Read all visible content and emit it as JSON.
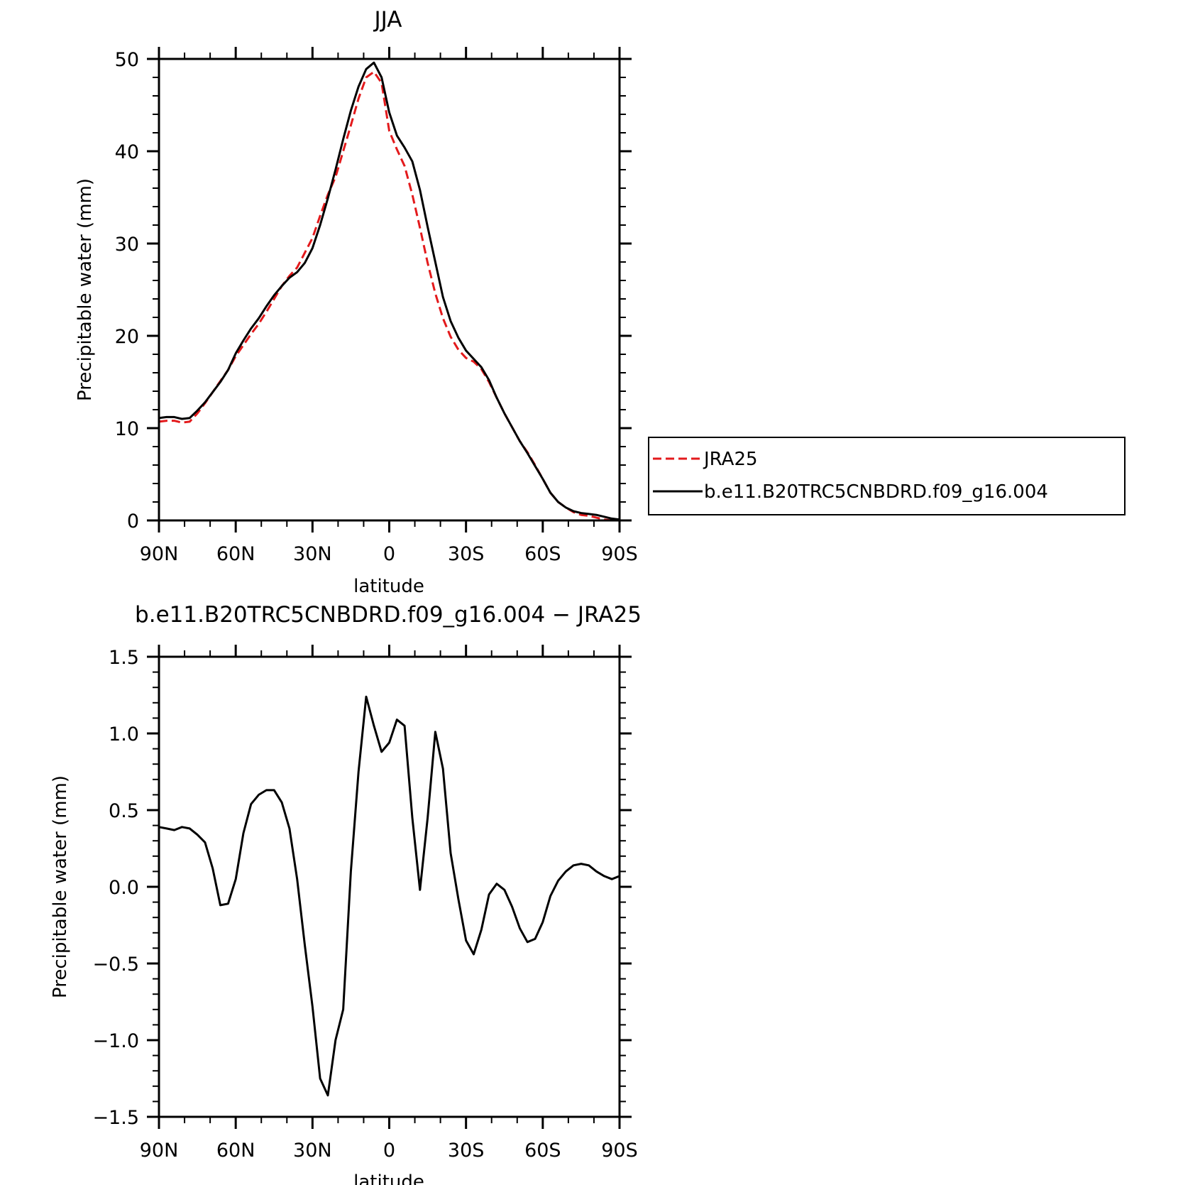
{
  "chart_data": [
    {
      "type": "line",
      "title": "JJA",
      "xlabel": "latitude",
      "ylabel": "Precipitable water (mm)",
      "xlim": [
        90,
        -90
      ],
      "ylim": [
        0,
        50
      ],
      "yticks": [
        0,
        10,
        20,
        30,
        40,
        50
      ],
      "ytick_labels": [
        "0",
        "10",
        "20",
        "30",
        "40",
        "50"
      ],
      "xticks": [
        90,
        60,
        30,
        0,
        -30,
        -60,
        -90
      ],
      "xtick_labels": [
        "90N",
        "60N",
        "30N",
        "0",
        "30S",
        "60S",
        "90S"
      ],
      "grid": false,
      "legend": "right",
      "x": [
        90,
        87,
        84,
        81,
        78,
        75,
        72,
        69,
        66,
        63,
        60,
        57,
        54,
        51,
        48,
        45,
        42,
        39,
        36,
        33,
        30,
        27,
        24,
        21,
        18,
        15,
        12,
        9,
        6,
        3,
        0,
        -3,
        -6,
        -9,
        -12,
        -15,
        -18,
        -21,
        -24,
        -27,
        -30,
        -33,
        -36,
        -39,
        -42,
        -45,
        -48,
        -51,
        -54,
        -57,
        -60,
        -63,
        -66,
        -69,
        -72,
        -75,
        -78,
        -81,
        -84,
        -87,
        -90
      ],
      "series": [
        {
          "name": "JRA25",
          "color": "#e31a1c",
          "style": "dashed",
          "values": [
            10.7,
            10.8,
            10.8,
            10.6,
            10.7,
            11.6,
            12.7,
            13.9,
            15.1,
            16.3,
            17.8,
            19.0,
            20.2,
            21.3,
            22.6,
            24.0,
            25.4,
            26.5,
            27.4,
            29.0,
            30.6,
            33.0,
            35.3,
            37.2,
            40.0,
            42.8,
            45.7,
            48.0,
            48.6,
            47.4,
            42.2,
            40.2,
            38.4,
            35.3,
            31.7,
            27.9,
            24.6,
            21.9,
            19.9,
            18.5,
            17.6,
            17.2,
            16.4,
            15.0,
            13.3,
            11.6,
            10.1,
            8.6,
            7.4,
            6.0,
            4.5,
            3.0,
            2.0,
            1.4,
            0.9,
            0.6,
            0.5,
            0.3,
            0.1,
            0.0,
            0.0
          ]
        },
        {
          "name": "b.e11.B20TRC5CNBDRD.f09_g16.004",
          "color": "#000000",
          "style": "solid",
          "values": [
            11.1,
            11.2,
            11.2,
            11.0,
            11.1,
            11.9,
            12.8,
            13.9,
            15.0,
            16.3,
            18.1,
            19.5,
            20.8,
            21.9,
            23.2,
            24.4,
            25.4,
            26.3,
            26.9,
            27.9,
            29.5,
            32.0,
            34.9,
            38.0,
            41.3,
            44.4,
            47.0,
            48.9,
            49.6,
            48.0,
            44.2,
            41.7,
            40.4,
            38.9,
            35.8,
            31.8,
            28.0,
            24.2,
            21.6,
            19.8,
            18.4,
            17.5,
            16.6,
            15.2,
            13.3,
            11.6,
            10.1,
            8.6,
            7.3,
            5.9,
            4.5,
            3.0,
            2.0,
            1.4,
            1.0,
            0.8,
            0.7,
            0.6,
            0.4,
            0.2,
            0.1
          ]
        }
      ]
    },
    {
      "type": "line",
      "title": "b.e11.B20TRC5CNBDRD.f09_g16.004 − JRA25",
      "xlabel": "latitude",
      "ylabel": "Precipitable water (mm)",
      "xlim": [
        90,
        -90
      ],
      "ylim": [
        -1.5,
        1.5
      ],
      "yticks": [
        -1.5,
        -1.0,
        -0.5,
        0.0,
        0.5,
        1.0,
        1.5
      ],
      "ytick_labels": [
        "−1.5",
        "−1.0",
        "−0.5",
        "0.0",
        "0.5",
        "1.0",
        "1.5"
      ],
      "xticks": [
        90,
        60,
        30,
        0,
        -30,
        -60,
        -90
      ],
      "xtick_labels": [
        "90N",
        "60N",
        "30N",
        "0",
        "30S",
        "60S",
        "90S"
      ],
      "grid": false,
      "x": [
        90,
        87,
        84,
        81,
        78,
        75,
        72,
        69,
        66,
        63,
        60,
        57,
        54,
        51,
        48,
        45,
        42,
        39,
        36,
        33,
        30,
        27,
        24,
        21,
        18,
        15,
        12,
        9,
        6,
        3,
        0,
        -3,
        -6,
        -9,
        -12,
        -15,
        -18,
        -21,
        -24,
        -27,
        -30,
        -33,
        -36,
        -39,
        -42,
        -45,
        -48,
        -51,
        -54,
        -57,
        -60,
        -63,
        -66,
        -69,
        -72,
        -75,
        -78,
        -81,
        -84,
        -87,
        -90
      ],
      "series": [
        {
          "name": "b.e11.B20TRC5CNBDRD.f09_g16.004 − JRA25",
          "color": "#000000",
          "style": "solid",
          "values": [
            0.39,
            0.38,
            0.37,
            0.39,
            0.38,
            0.34,
            0.29,
            0.12,
            -0.12,
            -0.11,
            0.05,
            0.35,
            0.54,
            0.6,
            0.63,
            0.63,
            0.55,
            0.38,
            0.05,
            -0.38,
            -0.78,
            -1.25,
            -1.36,
            -1.0,
            -0.8,
            0.1,
            0.75,
            1.24,
            1.05,
            0.88,
            0.94,
            1.09,
            1.05,
            0.45,
            -0.02,
            0.45,
            1.01,
            0.77,
            0.22,
            -0.08,
            -0.35,
            -0.44,
            -0.28,
            -0.05,
            0.02,
            -0.02,
            -0.13,
            -0.27,
            -0.36,
            -0.34,
            -0.23,
            -0.06,
            0.04,
            0.1,
            0.14,
            0.15,
            0.14,
            0.1,
            0.07,
            0.05,
            0.07
          ]
        }
      ]
    }
  ]
}
